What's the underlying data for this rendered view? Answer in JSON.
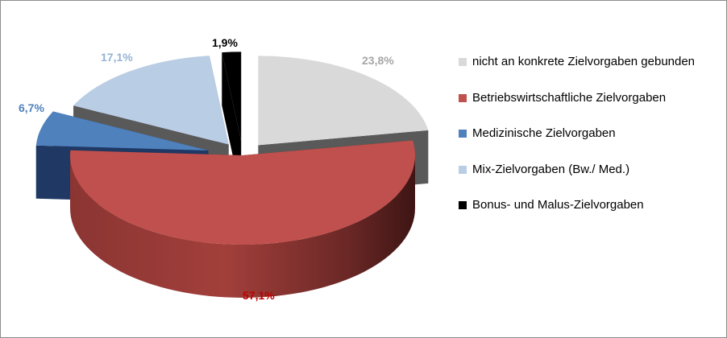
{
  "chart_data": {
    "type": "pie",
    "title": "",
    "style": "3d-exploded",
    "legend_position": "right",
    "categories": [
      "nicht an konkrete Zielvorgaben gebunden",
      "Betriebswirtschaftliche Zielvorgaben",
      "Medizinische Zielvorgaben",
      "Mix-Zielvorgaben (Bw./ Med.)",
      "Bonus- und Malus-Zielvorgaben"
    ],
    "values": [
      23.8,
      57.1,
      6.7,
      17.1,
      1.9
    ],
    "value_labels": [
      "23,8%",
      "57,1%",
      "6,7%",
      "17,1%",
      "1,9%"
    ],
    "colors": [
      "#d9d9d9",
      "#c0504d",
      "#4f81bd",
      "#b9cde5",
      "#000000"
    ],
    "side_colors": [
      "#595959",
      "#5b1f1d",
      "#1f3864",
      "#595959",
      "#000000"
    ],
    "label_colors": [
      "#a6a6a6",
      "#c00000",
      "#4f81bd",
      "#95b3d7",
      "#000000"
    ]
  }
}
